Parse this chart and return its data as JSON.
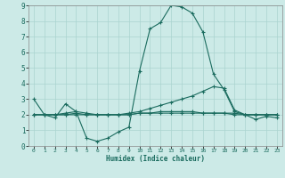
{
  "title": "",
  "xlabel": "Humidex (Indice chaleur)",
  "ylabel": "",
  "bg_color": "#cceae7",
  "grid_color": "#aad4d0",
  "line_color": "#1a6b5e",
  "xlim": [
    -0.5,
    23.5
  ],
  "ylim": [
    0,
    9
  ],
  "xticks": [
    0,
    1,
    2,
    3,
    4,
    5,
    6,
    7,
    8,
    9,
    10,
    11,
    12,
    13,
    14,
    15,
    16,
    17,
    18,
    19,
    20,
    21,
    22,
    23
  ],
  "yticks": [
    0,
    1,
    2,
    3,
    4,
    5,
    6,
    7,
    8,
    9
  ],
  "series": {
    "main": {
      "x": [
        0,
        1,
        2,
        3,
        4,
        5,
        6,
        7,
        8,
        9,
        10,
        11,
        12,
        13,
        14,
        15,
        16,
        17,
        18,
        19,
        20,
        21,
        22,
        23
      ],
      "y": [
        3.0,
        2.0,
        1.8,
        2.7,
        2.2,
        0.5,
        0.3,
        0.5,
        0.9,
        1.2,
        4.8,
        7.5,
        7.9,
        9.0,
        8.9,
        8.5,
        7.3,
        4.6,
        3.6,
        2.2,
        2.0,
        1.7,
        1.9,
        1.8
      ]
    },
    "flat1": {
      "x": [
        0,
        1,
        2,
        3,
        4,
        5,
        6,
        7,
        8,
        9,
        10,
        11,
        12,
        13,
        14,
        15,
        16,
        17,
        18,
        19,
        20,
        21,
        22,
        23
      ],
      "y": [
        2.0,
        2.0,
        2.0,
        2.0,
        2.1,
        2.0,
        2.0,
        2.0,
        2.0,
        2.0,
        2.1,
        2.1,
        2.1,
        2.1,
        2.1,
        2.1,
        2.1,
        2.1,
        2.1,
        2.1,
        2.0,
        2.0,
        2.0,
        2.0
      ]
    },
    "rising": {
      "x": [
        0,
        1,
        2,
        3,
        4,
        5,
        6,
        7,
        8,
        9,
        10,
        11,
        12,
        13,
        14,
        15,
        16,
        17,
        18,
        19,
        20,
        21,
        22,
        23
      ],
      "y": [
        2.0,
        2.0,
        2.0,
        2.0,
        2.0,
        2.0,
        2.0,
        2.0,
        2.0,
        2.1,
        2.2,
        2.4,
        2.6,
        2.8,
        3.0,
        3.2,
        3.5,
        3.8,
        3.7,
        2.3,
        2.0,
        2.0,
        2.0,
        2.0
      ]
    },
    "flat2": {
      "x": [
        0,
        1,
        2,
        3,
        4,
        5,
        6,
        7,
        8,
        9,
        10,
        11,
        12,
        13,
        14,
        15,
        16,
        17,
        18,
        19,
        20,
        21,
        22,
        23
      ],
      "y": [
        2.0,
        2.0,
        2.0,
        2.1,
        2.2,
        2.1,
        2.0,
        2.0,
        2.0,
        2.0,
        2.1,
        2.1,
        2.2,
        2.2,
        2.2,
        2.2,
        2.1,
        2.1,
        2.1,
        2.0,
        2.0,
        2.0,
        2.0,
        2.0
      ]
    }
  }
}
